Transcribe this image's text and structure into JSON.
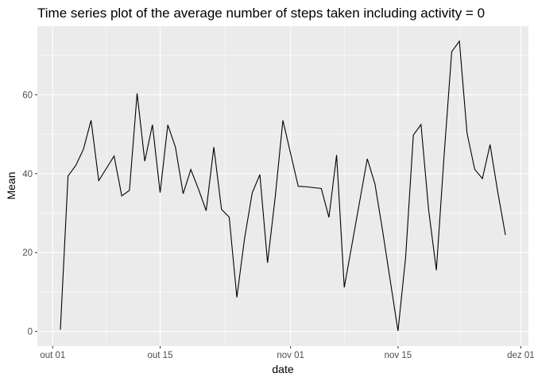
{
  "chart_data": {
    "type": "line",
    "title": "Time series plot of the average number of steps taken including activity = 0",
    "xlabel": "date",
    "ylabel": "Mean",
    "x_ticks": [
      {
        "date": "2012-10-01",
        "label": "out 01"
      },
      {
        "date": "2012-10-15",
        "label": "out 15"
      },
      {
        "date": "2012-11-01",
        "label": "nov 01"
      },
      {
        "date": "2012-11-15",
        "label": "nov 15"
      },
      {
        "date": "2012-12-01",
        "label": "dez 01"
      }
    ],
    "y_ticks": [
      0,
      20,
      40,
      60
    ],
    "xlim": [
      "2012-09-29",
      "2012-12-02"
    ],
    "ylim": [
      -3.7,
      77.4
    ],
    "grid": true,
    "background_color": "#ebebeb",
    "line_color": "#000000",
    "series": [
      {
        "x": [
          "2012-10-02",
          "2012-10-03",
          "2012-10-04",
          "2012-10-05",
          "2012-10-06",
          "2012-10-07",
          "2012-10-09",
          "2012-10-10",
          "2012-10-11",
          "2012-10-12",
          "2012-10-13",
          "2012-10-14",
          "2012-10-15",
          "2012-10-16",
          "2012-10-17",
          "2012-10-18",
          "2012-10-19",
          "2012-10-20",
          "2012-10-21",
          "2012-10-22",
          "2012-10-23",
          "2012-10-24",
          "2012-10-25",
          "2012-10-26",
          "2012-10-27",
          "2012-10-28",
          "2012-10-29",
          "2012-10-30",
          "2012-10-31",
          "2012-11-02",
          "2012-11-03",
          "2012-11-05",
          "2012-11-06",
          "2012-11-07",
          "2012-11-08",
          "2012-11-11",
          "2012-11-12",
          "2012-11-13",
          "2012-11-15",
          "2012-11-16",
          "2012-11-17",
          "2012-11-18",
          "2012-11-19",
          "2012-11-20",
          "2012-11-21",
          "2012-11-22",
          "2012-11-23",
          "2012-11-24",
          "2012-11-25",
          "2012-11-26",
          "2012-11-27",
          "2012-11-28",
          "2012-11-29"
        ],
        "values": [
          0.44,
          39.42,
          42.07,
          46.16,
          53.54,
          38.25,
          44.48,
          34.38,
          35.78,
          60.35,
          43.15,
          52.42,
          35.2,
          52.38,
          46.71,
          34.92,
          41.07,
          36.09,
          30.63,
          46.74,
          30.97,
          29.01,
          8.65,
          23.53,
          35.14,
          39.78,
          17.42,
          34.09,
          53.52,
          36.81,
          36.7,
          36.25,
          28.94,
          44.73,
          11.18,
          43.78,
          37.38,
          25.47,
          0.14,
          18.89,
          49.79,
          52.47,
          30.7,
          15.53,
          44.4,
          70.93,
          73.59,
          50.27,
          41.09,
          38.76,
          47.38,
          35.36,
          24.47
        ]
      }
    ]
  }
}
